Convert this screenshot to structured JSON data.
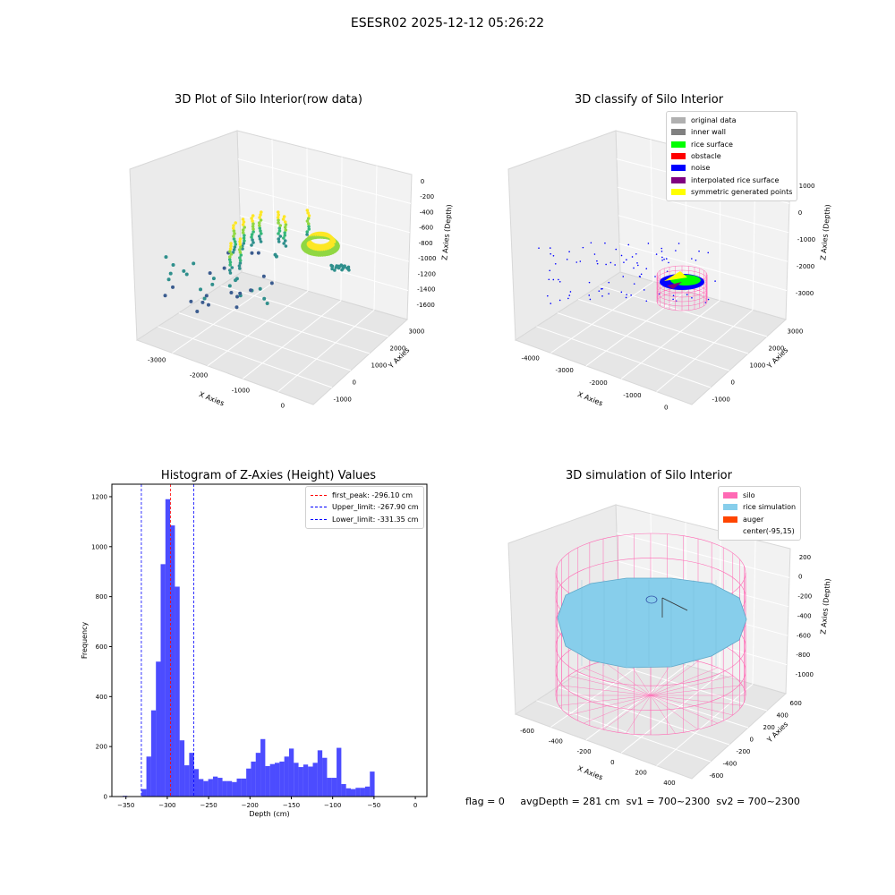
{
  "figure": {
    "suptitle": "ESESR02 2025-12-12 05:26:22",
    "footer": {
      "flag": "flag = 0",
      "avg_depth": "avgDepth = 281 cm",
      "sv1": "sv1 = 700~2300",
      "sv2": "sv2 = 700~2300"
    }
  },
  "chart_data": [
    {
      "type": "scatter",
      "title": "3D Plot of Silo Interior(row data)",
      "xlabel": "X Axies",
      "ylabel": "Y Axies",
      "zlabel": "Z Axies (Depth)",
      "xticks": [
        "-3000",
        "-2000",
        "-1000",
        "0"
      ],
      "yticks": [
        "-1000",
        "0",
        "1000",
        "2000",
        "3000"
      ],
      "zticks": [
        "0",
        "-200",
        "-400",
        "-600",
        "-800",
        "-1000",
        "-1200",
        "-1400",
        "-1600"
      ],
      "colormap": [
        "#3b5c8f",
        "#2f8f8c",
        "#35b779",
        "#90d743",
        "#fde725"
      ],
      "grid": true
    },
    {
      "type": "scatter",
      "title": "3D classify of Silo Interior",
      "xlabel": "X Axies",
      "ylabel": "Y Axies",
      "zlabel": "Z Axies (Depth)",
      "xticks": [
        "-4000",
        "-3000",
        "-2000",
        "-1000",
        "0"
      ],
      "yticks": [
        "-1000",
        "0",
        "1000",
        "2000",
        "3000"
      ],
      "zticks": [
        "1000",
        "0",
        "-1000",
        "-2000",
        "-3000"
      ],
      "legend_position": "top-right",
      "legend": [
        {
          "label": "original data",
          "color": "#b0b0b0"
        },
        {
          "label": "inner wall",
          "color": "#808080"
        },
        {
          "label": "rice surface",
          "color": "#00ff00"
        },
        {
          "label": "obstacle",
          "color": "#ff0000"
        },
        {
          "label": "noise",
          "color": "#0000ff"
        },
        {
          "label": "interpolated rice surface",
          "color": "#800080"
        },
        {
          "label": "symmetric generated points",
          "color": "#ffff00"
        }
      ],
      "grid": true
    },
    {
      "type": "bar",
      "title": "Histogram of Z-Axies (Height) Values",
      "xlabel": "Depth (cm)",
      "ylabel": "Frequency",
      "xlim": [
        -367,
        14
      ],
      "ylim": [
        0,
        1250
      ],
      "xticks": [
        -350,
        -300,
        -250,
        -200,
        -150,
        -100,
        -50,
        0
      ],
      "yticks": [
        0,
        200,
        400,
        600,
        800,
        1000,
        1200
      ],
      "bin_width": 5.75,
      "bins": [
        [
          -354,
          3
        ],
        [
          -348.25,
          0
        ],
        [
          -342.5,
          0
        ],
        [
          -336.75,
          0
        ],
        [
          -331,
          30
        ],
        [
          -325.25,
          160
        ],
        [
          -319.5,
          345
        ],
        [
          -313.75,
          540
        ],
        [
          -308,
          930
        ],
        [
          -302.25,
          1190
        ],
        [
          -296.5,
          1085
        ],
        [
          -290.75,
          840
        ],
        [
          -285,
          225
        ],
        [
          -279.25,
          125
        ],
        [
          -273.5,
          175
        ],
        [
          -267.75,
          110
        ],
        [
          -262,
          70
        ],
        [
          -256.25,
          62
        ],
        [
          -250.5,
          70
        ],
        [
          -244.75,
          80
        ],
        [
          -239,
          75
        ],
        [
          -233.25,
          62
        ],
        [
          -227.5,
          62
        ],
        [
          -221.75,
          58
        ],
        [
          -216,
          72
        ],
        [
          -210.25,
          72
        ],
        [
          -204.5,
          112
        ],
        [
          -198.75,
          140
        ],
        [
          -193,
          175
        ],
        [
          -187.25,
          230
        ],
        [
          -181.5,
          122
        ],
        [
          -175.75,
          130
        ],
        [
          -170,
          135
        ],
        [
          -164.25,
          140
        ],
        [
          -158.5,
          160
        ],
        [
          -152.75,
          192
        ],
        [
          -147,
          135
        ],
        [
          -141.25,
          118
        ],
        [
          -135.5,
          128
        ],
        [
          -129.75,
          120
        ],
        [
          -124,
          135
        ],
        [
          -118.25,
          185
        ],
        [
          -112.5,
          155
        ],
        [
          -106.75,
          75
        ],
        [
          -101,
          75
        ],
        [
          -95.25,
          195
        ],
        [
          -89.5,
          50
        ],
        [
          -83.75,
          33
        ],
        [
          -78,
          30
        ],
        [
          -72.25,
          35
        ],
        [
          -66.5,
          35
        ],
        [
          -60.75,
          40
        ],
        [
          -55,
          100
        ]
      ],
      "bar_color": "#0000ff",
      "vlines": [
        {
          "label": "first_peak: -296.10 cm",
          "x": -296.1,
          "color": "#ff0000"
        },
        {
          "label": "Upper_limit: -267.90 cm",
          "x": -267.9,
          "color": "#0000ff"
        },
        {
          "label": "Lower_limit: -331.35 cm",
          "x": -331.35,
          "color": "#0000ff"
        }
      ],
      "legend_position": "top-right"
    },
    {
      "type": "surface",
      "title": "3D simulation of Silo Interior",
      "xlabel": "X Axies",
      "ylabel": "Y Axies",
      "zlabel": "Z Axies (Depth)",
      "xticks": [
        "-600",
        "-400",
        "-200",
        "0",
        "200",
        "400"
      ],
      "yticks": [
        "-600",
        "-400",
        "-200",
        "0",
        "200",
        "400",
        "600"
      ],
      "zticks": [
        "200",
        "0",
        "-200",
        "-400",
        "-600",
        "-800",
        "-1000"
      ],
      "legend_position": "top-right",
      "legend": [
        {
          "label": "silo",
          "color": "#ff69b4"
        },
        {
          "label": "rice simulation",
          "color": "#87ceeb"
        },
        {
          "label": "auger",
          "color": "#ff4500"
        },
        {
          "label": "center(-95,15)",
          "color": "#ffffff"
        }
      ],
      "grid": true
    }
  ]
}
